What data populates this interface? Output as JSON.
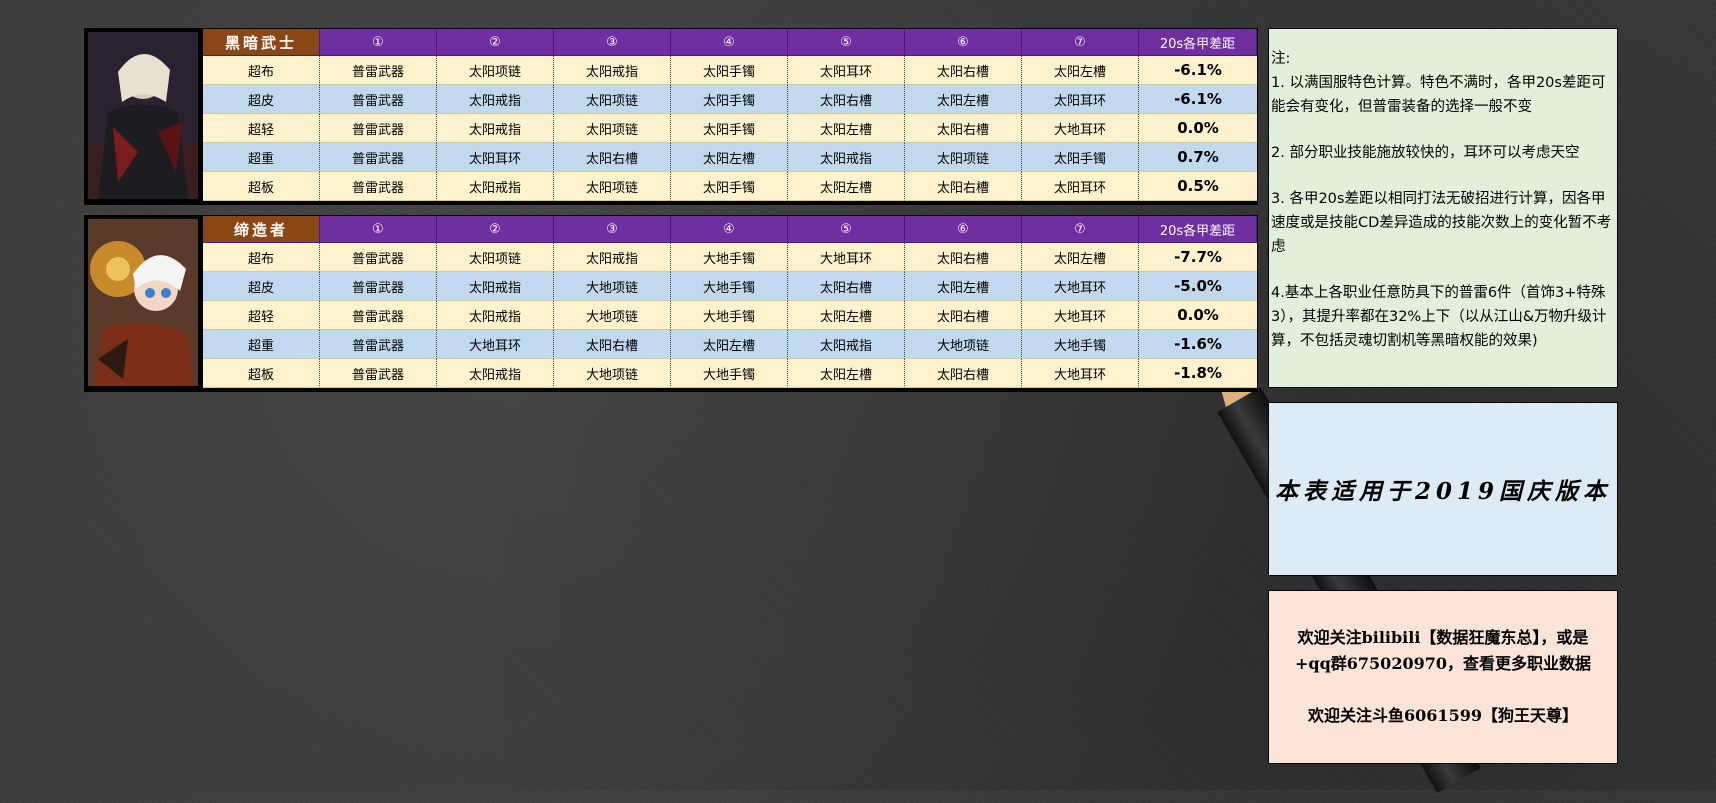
{
  "tables": [
    {
      "class_name": "黑暗武士",
      "columns": [
        "①",
        "②",
        "③",
        "④",
        "⑤",
        "⑥",
        "⑦",
        "20s各甲差距"
      ],
      "rows": [
        {
          "armor": "超布",
          "items": [
            "普雷武器",
            "太阳项链",
            "太阳戒指",
            "太阳手镯",
            "太阳耳环",
            "太阳右槽",
            "太阳左槽"
          ],
          "diff": "-6.1%"
        },
        {
          "armor": "超皮",
          "items": [
            "普雷武器",
            "太阳戒指",
            "太阳项链",
            "太阳手镯",
            "太阳右槽",
            "太阳左槽",
            "太阳耳环"
          ],
          "diff": "-6.1%"
        },
        {
          "armor": "超轻",
          "items": [
            "普雷武器",
            "太阳戒指",
            "太阳项链",
            "太阳手镯",
            "太阳左槽",
            "太阳右槽",
            "大地耳环"
          ],
          "diff": "0.0%"
        },
        {
          "armor": "超重",
          "items": [
            "普雷武器",
            "太阳耳环",
            "太阳右槽",
            "太阳左槽",
            "太阳戒指",
            "太阳项链",
            "太阳手镯"
          ],
          "diff": "0.7%"
        },
        {
          "armor": "超板",
          "items": [
            "普雷武器",
            "太阳戒指",
            "太阳项链",
            "太阳手镯",
            "太阳左槽",
            "太阳右槽",
            "太阳耳环"
          ],
          "diff": "0.5%"
        }
      ]
    },
    {
      "class_name": "缔造者",
      "columns": [
        "①",
        "②",
        "③",
        "④",
        "⑤",
        "⑥",
        "⑦",
        "20s各甲差距"
      ],
      "rows": [
        {
          "armor": "超布",
          "items": [
            "普雷武器",
            "太阳项链",
            "太阳戒指",
            "大地手镯",
            "大地耳环",
            "太阳右槽",
            "太阳左槽"
          ],
          "diff": "-7.7%"
        },
        {
          "armor": "超皮",
          "items": [
            "普雷武器",
            "太阳戒指",
            "大地项链",
            "大地手镯",
            "太阳右槽",
            "太阳左槽",
            "大地耳环"
          ],
          "diff": "-5.0%"
        },
        {
          "armor": "超轻",
          "items": [
            "普雷武器",
            "太阳戒指",
            "大地项链",
            "大地手镯",
            "太阳左槽",
            "太阳右槽",
            "大地耳环"
          ],
          "diff": "0.0%"
        },
        {
          "armor": "超重",
          "items": [
            "普雷武器",
            "大地耳环",
            "太阳右槽",
            "太阳左槽",
            "太阳戒指",
            "大地项链",
            "大地手镯"
          ],
          "diff": "-1.6%"
        },
        {
          "armor": "超板",
          "items": [
            "普雷武器",
            "太阳戒指",
            "大地项链",
            "大地手镯",
            "太阳左槽",
            "太阳右槽",
            "大地耳环"
          ],
          "diff": "-1.8%"
        }
      ]
    }
  ],
  "notes": {
    "title": "注:",
    "n1": "1. 以满国服特色计算。特色不满时，各甲20s差距可能会有变化，但普雷装备的选择一般不变",
    "n2": "2. 部分职业技能施放较快的，耳环可以考虑天空",
    "n3": "3. 各甲20s差距以相同打法无破招进行计算，因各甲速度或是技能CD差异造成的技能次数上的变化暂不考虑",
    "n4": "4.基本上各职业任意防具下的普雷6件（首饰3+特殊3），其提升率都在32%上下（以从江山&万物升级计算，不包括灵魂切割机等黑暗权能的效果)"
  },
  "version_note": "本表适用于2019国庆版本",
  "follow": {
    "line1": "欢迎关注bilibili【数据狂魔东总】，或是",
    "line2": "+qq群675020970，查看更多职业数据",
    "line3": "欢迎关注斗鱼6061599【狗王天尊】"
  },
  "colors": {
    "header_purple": "#6f2fa0",
    "class_brown": "#8a4614",
    "row_yellow": "#fff2cc",
    "row_blue": "#c0d9ef",
    "notes_green": "#e2efda",
    "version_blue": "#ddebf7",
    "follow_peach": "#fce4d6"
  }
}
